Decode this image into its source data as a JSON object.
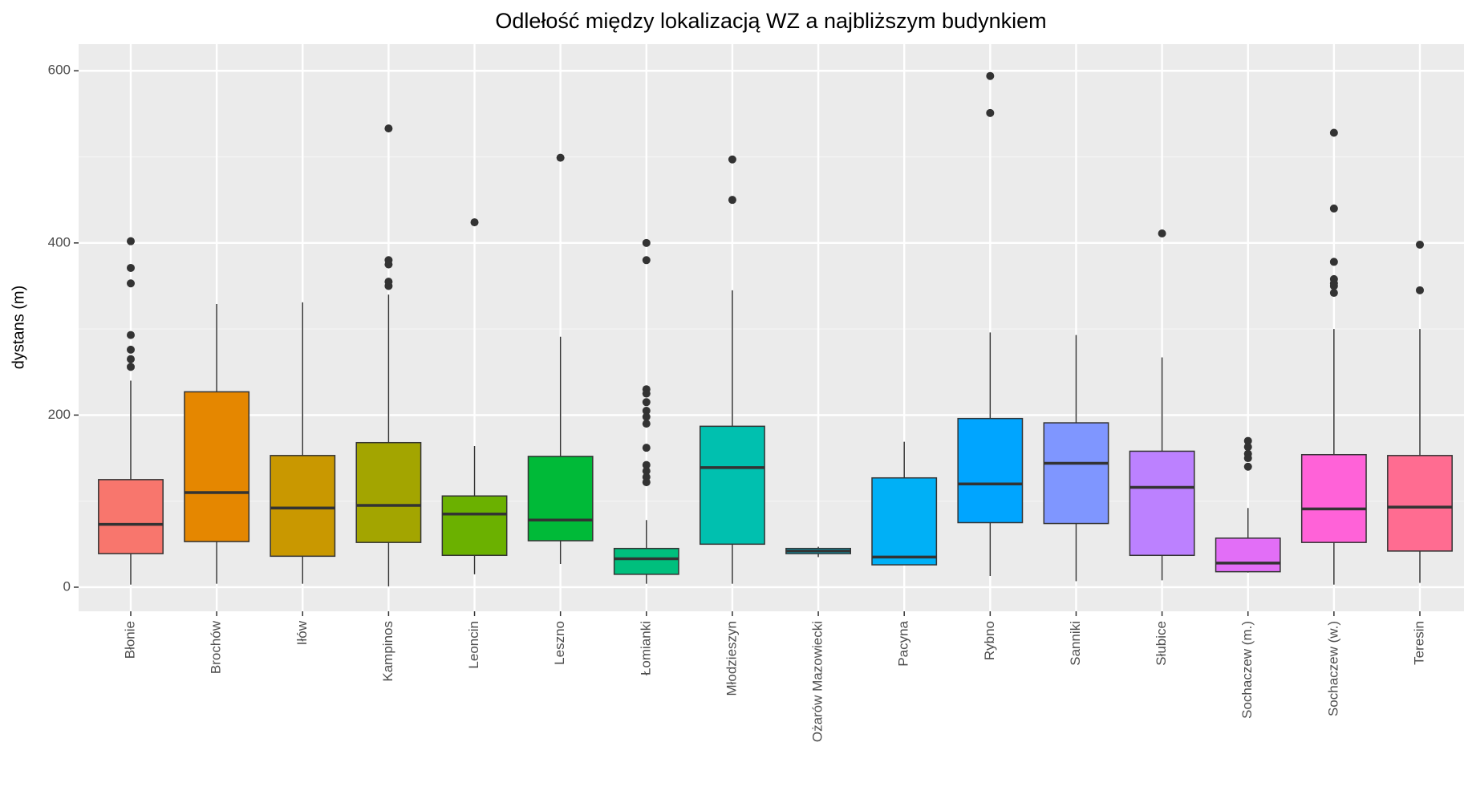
{
  "chart_data": {
    "type": "boxplot",
    "title": "Odlełość między lokalizacją WZ a najbliższym budynkiem",
    "y_label": "dystans (m)",
    "categories": [
      "Błonie",
      "Brochów",
      "Iłów",
      "Kampinos",
      "Leoncin",
      "Leszno",
      "Łomianki",
      "Młodzieszyn",
      "Ożarów Mazowiecki",
      "Pacyna",
      "Rybno",
      "Sanniki",
      "Słubice",
      "Sochaczew (m.)",
      "Sochaczew (w.)",
      "Teresin"
    ],
    "colors": [
      "#F8766D",
      "#E58700",
      "#C99800",
      "#A3A500",
      "#6BB100",
      "#00BA38",
      "#00BF7D",
      "#00C0AF",
      "#00BCD8",
      "#00B0F6",
      "#00A5FF",
      "#7F96FF",
      "#BC81FF",
      "#E26EF7",
      "#FF62D8",
      "#FF6C91"
    ],
    "boxes": [
      {
        "low": 3,
        "q1": 39,
        "median": 73,
        "q3": 125,
        "high": 240,
        "outliers": [
          402,
          371,
          353,
          293,
          276,
          265,
          256
        ]
      },
      {
        "low": 4,
        "q1": 53,
        "median": 110,
        "q3": 227,
        "high": 329,
        "outliers": []
      },
      {
        "low": 4,
        "q1": 36,
        "median": 92,
        "q3": 153,
        "high": 331,
        "outliers": []
      },
      {
        "low": 1,
        "q1": 52,
        "median": 95,
        "q3": 168,
        "high": 340,
        "outliers": [
          533,
          380,
          375,
          355,
          350
        ]
      },
      {
        "low": 15,
        "q1": 37,
        "median": 85,
        "q3": 106,
        "high": 164,
        "outliers": [
          424
        ]
      },
      {
        "low": 27,
        "q1": 54,
        "median": 78,
        "q3": 152,
        "high": 291,
        "outliers": [
          499
        ]
      },
      {
        "low": 4,
        "q1": 15,
        "median": 33,
        "q3": 45,
        "high": 78,
        "outliers": [
          400,
          380,
          230,
          225,
          215,
          205,
          198,
          190,
          162,
          142,
          135,
          128,
          122
        ]
      },
      {
        "low": 4,
        "q1": 50,
        "median": 139,
        "q3": 187,
        "high": 345,
        "outliers": [
          497,
          450
        ]
      },
      {
        "low": 35,
        "q1": 39,
        "median": 42,
        "q3": 45,
        "high": 47,
        "outliers": []
      },
      {
        "low": 26,
        "q1": 26,
        "median": 35,
        "q3": 127,
        "high": 169,
        "outliers": []
      },
      {
        "low": 13,
        "q1": 75,
        "median": 120,
        "q3": 196,
        "high": 296,
        "outliers": [
          594,
          551
        ]
      },
      {
        "low": 7,
        "q1": 74,
        "median": 144,
        "q3": 191,
        "high": 293,
        "outliers": []
      },
      {
        "low": 8,
        "q1": 37,
        "median": 116,
        "q3": 158,
        "high": 267,
        "outliers": [
          411
        ]
      },
      {
        "low": 17,
        "q1": 18,
        "median": 28,
        "q3": 57,
        "high": 92,
        "outliers": [
          170,
          163,
          155,
          150,
          140
        ]
      },
      {
        "low": 3,
        "q1": 52,
        "median": 91,
        "q3": 154,
        "high": 300,
        "outliers": [
          528,
          440,
          378,
          358,
          353,
          350,
          342
        ]
      },
      {
        "low": 5,
        "q1": 42,
        "median": 93,
        "q3": 153,
        "high": 300,
        "outliers": [
          398,
          345
        ]
      }
    ],
    "ylim": [
      -28,
      631
    ],
    "yticks": [
      0,
      200,
      400,
      600
    ],
    "grid": true
  }
}
